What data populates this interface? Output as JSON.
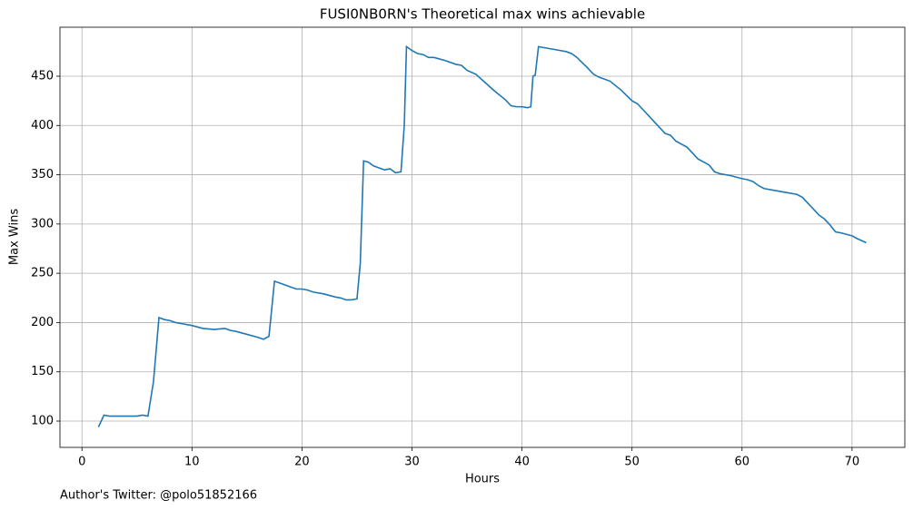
{
  "chart_data": {
    "type": "line",
    "title": "FUSI0NB0RN's Theoretical max wins achievable",
    "x_label": "Hours",
    "y_label": "Max Wins",
    "annotation": "Author's Twitter: @polo51852166",
    "x": [
      1.5,
      2.0,
      2.5,
      3,
      4,
      5,
      5.5,
      6,
      6.5,
      7,
      7.5,
      8,
      8.5,
      9,
      10,
      11,
      12,
      13,
      13.5,
      14,
      15,
      16,
      16.5,
      17,
      17.5,
      18,
      19,
      19.5,
      20,
      20.5,
      21,
      22,
      23,
      23.5,
      24,
      24.5,
      25,
      25.3,
      25.6,
      26,
      26.5,
      27,
      27.5,
      28,
      28.5,
      29,
      29.3,
      29.5,
      30,
      30.5,
      31,
      31.5,
      32,
      33,
      34,
      34.5,
      35,
      35.8,
      36.5,
      37.5,
      38.5,
      39,
      39.5,
      40,
      40.5,
      40.8,
      41,
      41.2,
      41.5,
      42,
      43,
      44,
      44.5,
      45,
      46,
      46.5,
      47,
      48,
      49,
      50,
      50.5,
      51,
      52,
      53,
      53.5,
      54,
      55,
      56,
      57,
      57.5,
      58,
      59,
      60,
      60.5,
      61,
      61.5,
      62,
      63,
      64,
      65,
      65.5,
      66,
      67,
      67.5,
      68,
      68.5,
      69,
      70,
      70.5,
      71.3
    ],
    "series": [
      {
        "name": "Max Wins",
        "color": "#1f77b4",
        "values": [
          94,
          106,
          105,
          105,
          105,
          105,
          106,
          105,
          140,
          205,
          203,
          202,
          200,
          199,
          197,
          194,
          193,
          194,
          192,
          191,
          188,
          185,
          183,
          186,
          242,
          240,
          236,
          234,
          234,
          233,
          231,
          229,
          226,
          225,
          223,
          223,
          224,
          260,
          364,
          363,
          359,
          357,
          355,
          356,
          352,
          353,
          400,
          480,
          476,
          473,
          472,
          469,
          469,
          466,
          462,
          461,
          456,
          452,
          445,
          435,
          426,
          420,
          419,
          419,
          418,
          419,
          450,
          451,
          480,
          479,
          477,
          475,
          473,
          469,
          458,
          452,
          449,
          445,
          436,
          425,
          422,
          416,
          404,
          392,
          390,
          384,
          378,
          366,
          360,
          353,
          351,
          349,
          346,
          345,
          343,
          339,
          336,
          334,
          332,
          330,
          327,
          321,
          309,
          305,
          299,
          292,
          291,
          288,
          285,
          281
        ]
      }
    ],
    "xlim": [
      -2,
      74.8
    ],
    "ylim": [
      73.3,
      499.7
    ],
    "xticks": [
      0,
      10,
      20,
      30,
      40,
      50,
      60,
      70
    ],
    "yticks": [
      100,
      150,
      200,
      250,
      300,
      350,
      400,
      450
    ],
    "grid": true
  }
}
